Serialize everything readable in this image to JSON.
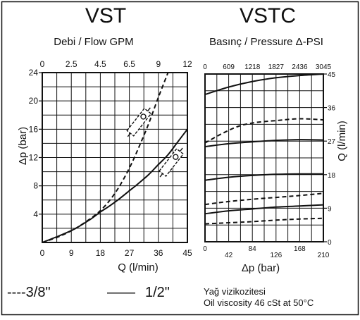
{
  "frame_color": "#111111",
  "charts": [
    {
      "title": "VST",
      "subtitle_tr": "Debi",
      "subtitle_sep": " / ",
      "subtitle_en": "Flow GPM",
      "top_ticks": [
        "0",
        "2.5",
        "4.5",
        "6.5",
        "9",
        "12"
      ],
      "ylabel": "Δp (bar)",
      "xlabel": "Q (l/min)"
    },
    {
      "title": "VSTC",
      "subtitle_tr": "Basınç",
      "subtitle_sep": " / ",
      "subtitle_en": "Pressure Δ-PSI",
      "top_ticks": [
        "0",
        "609",
        "1218",
        "1827",
        "2436",
        "3045"
      ],
      "ylabel": "Q (l/min)",
      "xlabel": "Δp (bar)"
    }
  ],
  "legend": {
    "dashed": "----3/8\"",
    "solid_dash": "——",
    "solid": "1/2\""
  },
  "note": {
    "line1": "Yağ vizikozitesi",
    "line2_tr": "Oil viscosity",
    "line2_value": " 46 cSt at 50°C"
  },
  "chart_data": [
    {
      "type": "line",
      "title": "VST",
      "xlabel": "Q (l/min)",
      "ylabel": "Δp (bar)",
      "x_ticks": [
        0,
        9,
        18,
        27,
        36,
        45
      ],
      "y_ticks": [
        4,
        8,
        12,
        16,
        20,
        24
      ],
      "xlim": [
        0,
        45
      ],
      "ylim": [
        0,
        24
      ],
      "grid": true,
      "series": [
        {
          "name": "3/8\"",
          "style": "dashed",
          "x": [
            0,
            5,
            10,
            15,
            18,
            21,
            24,
            27,
            30,
            33,
            36,
            39
          ],
          "y": [
            0,
            0.8,
            1.9,
            3.4,
            4.5,
            6.0,
            8.0,
            10.5,
            13.5,
            16.8,
            20.5,
            24
          ]
        },
        {
          "name": "1/2\"",
          "style": "solid",
          "x": [
            0,
            5,
            10,
            15,
            18,
            21,
            24,
            27,
            30,
            33,
            36,
            39,
            42,
            45
          ],
          "y": [
            0,
            0.9,
            1.9,
            3.3,
            4.3,
            5.2,
            6.2,
            7.3,
            8.4,
            9.6,
            11.0,
            12.4,
            14.2,
            16.0
          ]
        }
      ],
      "annotations": [
        "3/8\" valve symbol",
        "1/2\" valve symbol"
      ]
    },
    {
      "type": "line",
      "title": "VSTC",
      "xlabel": "Δp (bar)",
      "ylabel": "Q (l/min)",
      "x_ticks": [
        0,
        42,
        84,
        126,
        168,
        210
      ],
      "y_ticks": [
        0,
        9,
        18,
        27,
        36,
        45
      ],
      "xlim": [
        0,
        210
      ],
      "ylim": [
        0,
        45
      ],
      "grid": true,
      "series": [
        {
          "style": "solid",
          "x": [
            0,
            42,
            84,
            126,
            168,
            210
          ],
          "y": [
            39.5,
            41.5,
            43.0,
            44.0,
            44.6,
            45.0
          ]
        },
        {
          "style": "dashed",
          "x": [
            0,
            30,
            60,
            90,
            126,
            168,
            210
          ],
          "y": [
            26.5,
            29.0,
            31.0,
            32.0,
            32.5,
            33.0,
            32.7
          ]
        },
        {
          "style": "solid",
          "x": [
            0,
            42,
            84,
            126,
            168,
            210
          ],
          "y": [
            25.5,
            26.3,
            26.8,
            27.2,
            27.4,
            27.3
          ]
        },
        {
          "style": "solid",
          "x": [
            0,
            42,
            84,
            126,
            168,
            210
          ],
          "y": [
            16.5,
            17.3,
            17.8,
            18.1,
            18.2,
            18.2
          ]
        },
        {
          "style": "dashed",
          "x": [
            0,
            42,
            84,
            126,
            168,
            210
          ],
          "y": [
            10.0,
            10.8,
            11.4,
            11.9,
            12.4,
            13.0
          ]
        },
        {
          "style": "solid",
          "x": [
            0,
            42,
            84,
            126,
            168,
            210
          ],
          "y": [
            7.5,
            8.3,
            8.8,
            9.3,
            9.6,
            9.9
          ]
        },
        {
          "style": "dashed",
          "x": [
            0,
            42,
            84,
            126,
            168,
            210
          ],
          "y": [
            4.8,
            5.1,
            5.4,
            5.8,
            6.1,
            6.3
          ]
        }
      ]
    }
  ]
}
